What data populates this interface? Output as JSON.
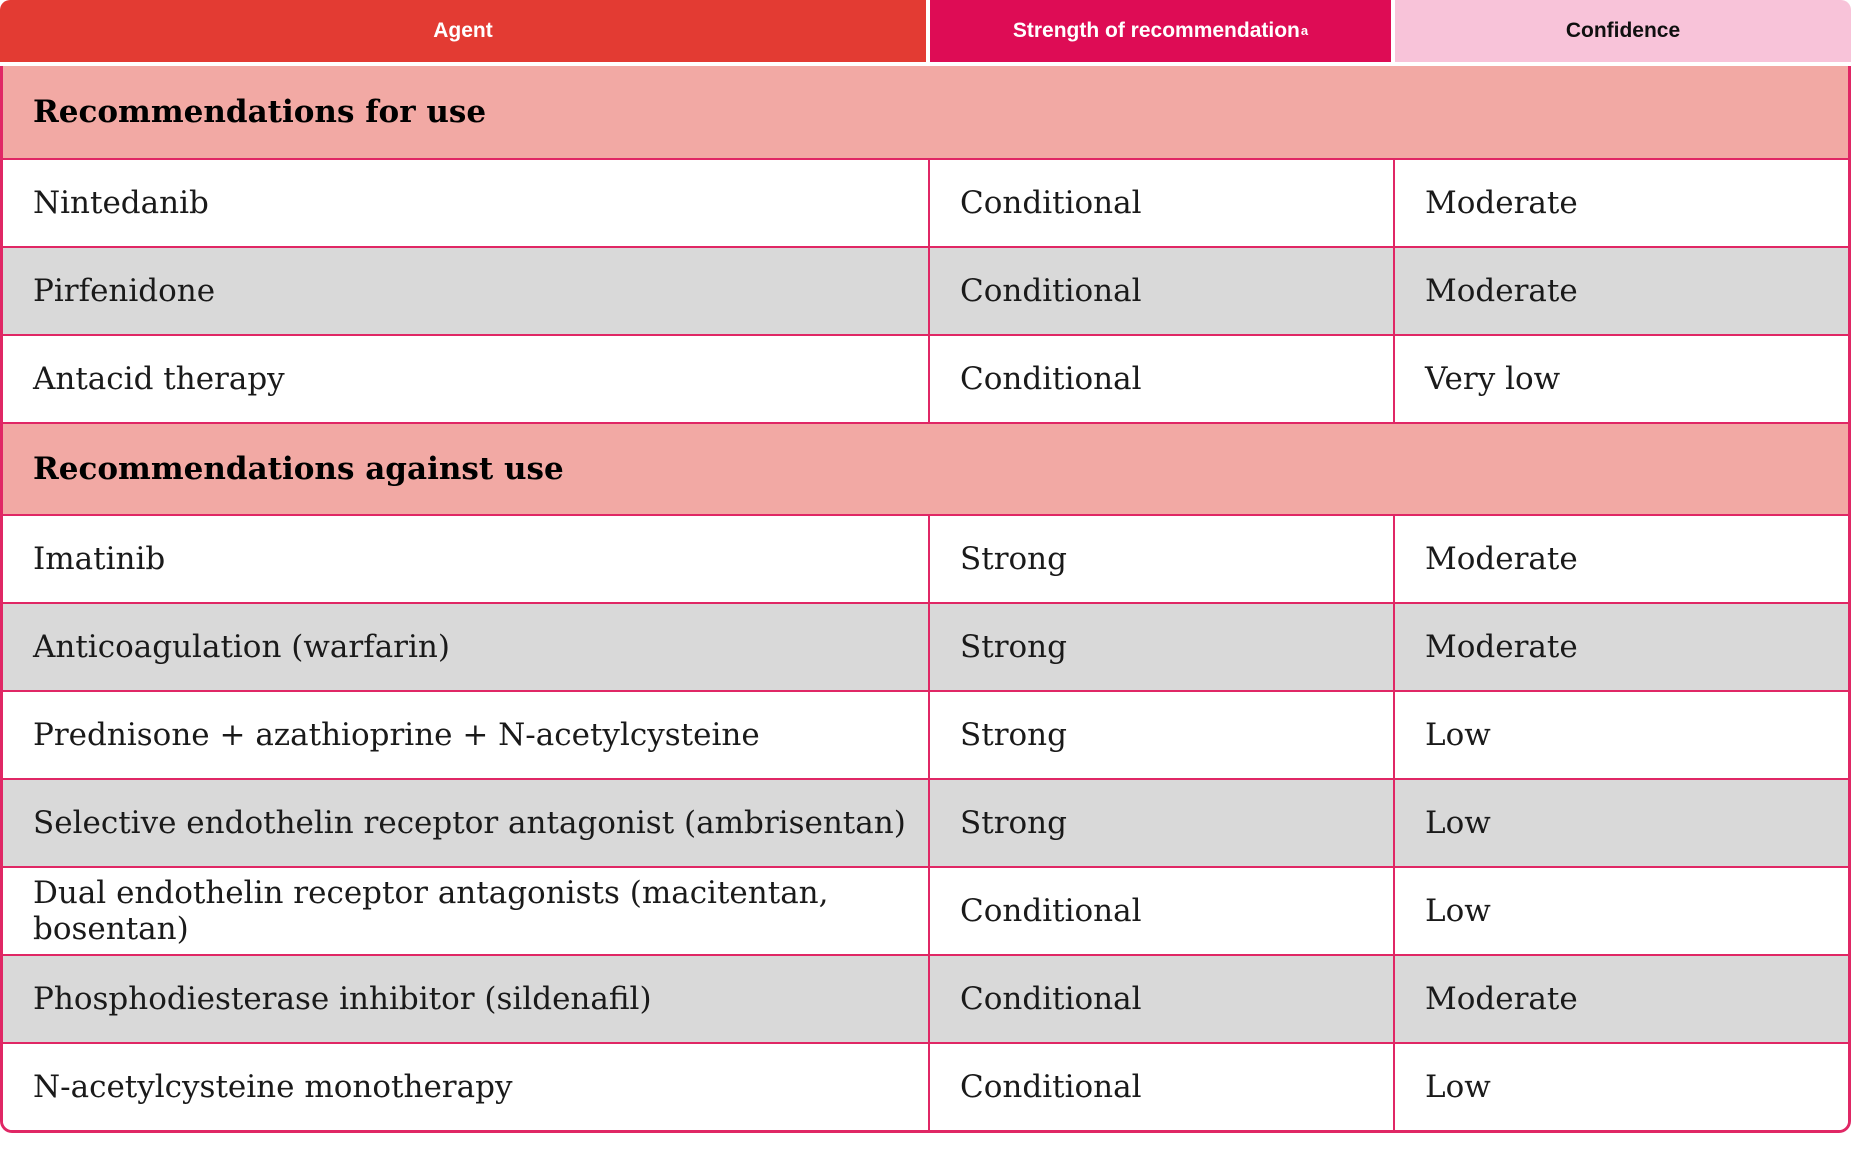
{
  "colors": {
    "header_red": "#E33B33",
    "header_crimson": "#DE0C55",
    "header_pink": "#F8C3D9",
    "section_bg": "#F2A9A4",
    "alt_row_bg": "#D9D9D9",
    "grid_line": "#E02765",
    "body_text": "#1A1A1A"
  },
  "header": {
    "agent": "Agent",
    "strength": "Strength of recommendation",
    "strength_superscript": "a",
    "confidence": "Confidence"
  },
  "sections": [
    {
      "title": "Recommendations for use",
      "rows": [
        {
          "agent": "Nintedanib",
          "strength": "Conditional",
          "confidence": "Moderate"
        },
        {
          "agent": "Pirfenidone",
          "strength": "Conditional",
          "confidence": "Moderate"
        },
        {
          "agent": "Antacid therapy",
          "strength": "Conditional",
          "confidence": "Very low"
        }
      ]
    },
    {
      "title": "Recommendations against use",
      "rows": [
        {
          "agent": "Imatinib",
          "strength": "Strong",
          "confidence": "Moderate"
        },
        {
          "agent": "Anticoagulation (warfarin)",
          "strength": "Strong",
          "confidence": "Moderate"
        },
        {
          "agent": "Prednisone + azathioprine + N-acetylcysteine",
          "strength": "Strong",
          "confidence": "Low"
        },
        {
          "agent": "Selective endothelin receptor antagonist (ambrisentan)",
          "strength": "Strong",
          "confidence": "Low"
        },
        {
          "agent": "Dual endothelin receptor antagonists (macitentan, bosentan)",
          "strength": "Conditional",
          "confidence": "Low"
        },
        {
          "agent": "Phosphodiesterase inhibitor (sildenafil)",
          "strength": "Conditional",
          "confidence": "Moderate"
        },
        {
          "agent": "N-acetylcysteine monotherapy",
          "strength": "Conditional",
          "confidence": "Low"
        }
      ]
    }
  ]
}
